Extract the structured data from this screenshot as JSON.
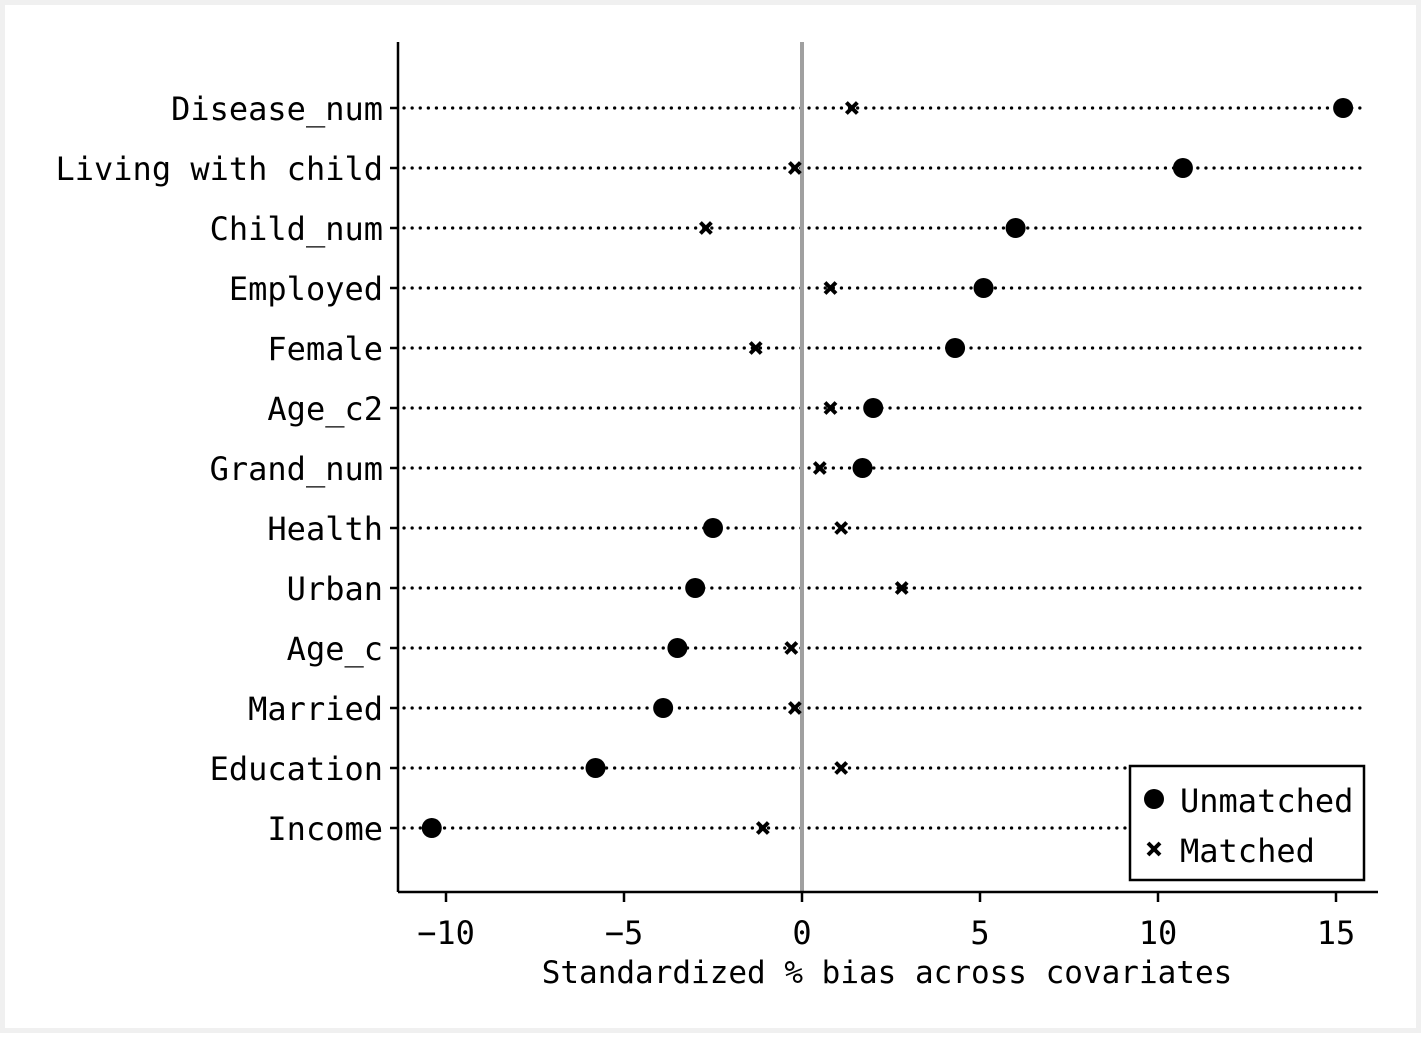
{
  "chart_data": {
    "type": "scatter",
    "title": "",
    "xlabel": "Standardized % bias across covariates",
    "ylabel": "",
    "xlim": [
      -11.2,
      16.3
    ],
    "xticks": [
      -10,
      -5,
      0,
      5,
      10,
      15
    ],
    "xtick_labels": [
      "−10",
      "−5",
      "0",
      "5",
      "10",
      "15"
    ],
    "reference_line_x": 0,
    "grid": false,
    "legend_position": "bottom-right",
    "categories": [
      "Disease_num",
      "Living with child",
      "Child_num",
      "Employed",
      "Female",
      "Age_c2",
      "Grand_num",
      "Health",
      "Urban",
      "Age_c",
      "Married",
      "Education",
      "Income"
    ],
    "series": [
      {
        "name": "Unmatched",
        "marker": "circle",
        "values": [
          15.2,
          10.7,
          6.0,
          5.1,
          4.3,
          2.0,
          1.7,
          -2.5,
          -3.0,
          -3.5,
          -3.9,
          -5.8,
          -10.4
        ]
      },
      {
        "name": "Matched",
        "marker": "x",
        "values": [
          1.4,
          -0.2,
          -2.7,
          0.8,
          -1.3,
          0.8,
          0.5,
          1.1,
          2.8,
          -0.3,
          -0.2,
          1.1,
          -1.1
        ]
      }
    ],
    "colors": {
      "outer_background": "#f0f0f0",
      "plot_background": "#ffffff",
      "markers": "#000000",
      "reference_line": "#a0a0a0"
    }
  }
}
